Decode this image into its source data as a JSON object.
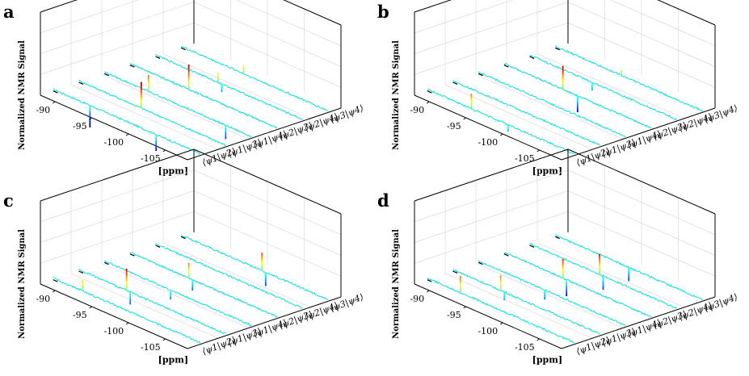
{
  "chart_data": [
    {
      "panel": "a",
      "type": "line",
      "ylabel": "Normalized NMR Signal",
      "xlabel": "[ppm]",
      "x_ticks": [
        "-90",
        "-95",
        "-100",
        "-105"
      ],
      "series_labels": [
        "⟨ψ1|ψ2⟩",
        "⟨ψ1|ψ3⟩",
        "⟨ψ1|ψ4⟩",
        "⟨ψ2|ψ3⟩",
        "⟨ψ2|ψ4⟩",
        "⟨ψ3|ψ4⟩"
      ],
      "xlim": [
        -88,
        -108
      ],
      "colormap": "jet",
      "peaks": [
        {
          "series": 0,
          "ppm": -93.0,
          "value": -0.8
        },
        {
          "series": 0,
          "ppm": -102.0,
          "value": -0.6
        },
        {
          "series": 1,
          "ppm": -96.5,
          "value": 0.95
        },
        {
          "series": 2,
          "ppm": -94.0,
          "value": 0.6
        },
        {
          "series": 2,
          "ppm": -104.5,
          "value": -0.5
        },
        {
          "series": 3,
          "ppm": -96.0,
          "value": 0.9
        },
        {
          "series": 4,
          "ppm": -96.5,
          "value": 0.35
        },
        {
          "series": 4,
          "ppm": -97.0,
          "value": -0.3
        },
        {
          "series": 5,
          "ppm": -96.5,
          "value": 0.3
        }
      ]
    },
    {
      "panel": "b",
      "type": "line",
      "ylabel": "Normalized NMR Signal",
      "xlabel": "[ppm]",
      "x_ticks": [
        "-90",
        "-95",
        "-100",
        "-105"
      ],
      "series_labels": [
        "⟨ψ1|ψ2⟩",
        "⟨ψ1|ψ3⟩",
        "⟨ψ1|ψ4⟩",
        "⟨ψ2|ψ3⟩",
        "⟨ψ2|ψ4⟩",
        "⟨ψ3|ψ4⟩"
      ],
      "xlim": [
        -88,
        -108
      ],
      "colormap": "jet",
      "peaks": [
        {
          "series": 0,
          "ppm": -94.0,
          "value": 0.55
        },
        {
          "series": 0,
          "ppm": -99.0,
          "value": -0.25
        },
        {
          "series": 3,
          "ppm": -96.0,
          "value": 0.85
        },
        {
          "series": 3,
          "ppm": -98.0,
          "value": -0.6
        },
        {
          "series": 4,
          "ppm": -96.5,
          "value": -0.3
        },
        {
          "series": 5,
          "ppm": -97.0,
          "value": 0.2
        }
      ]
    },
    {
      "panel": "c",
      "type": "line",
      "ylabel": "Normalized NMR Signal",
      "xlabel": "[ppm]",
      "x_ticks": [
        "-90",
        "-95",
        "-100",
        "-105"
      ],
      "series_labels": [
        "⟨ψ1|ψ2⟩",
        "⟨ψ1|ψ3⟩",
        "⟨ψ1|ψ4⟩",
        "⟨ψ2|ψ3⟩",
        "⟨ψ2|ψ4⟩",
        "⟨ψ3|ψ4⟩"
      ],
      "xlim": [
        -88,
        -108
      ],
      "colormap": "jet",
      "peaks": [
        {
          "series": 0,
          "ppm": -92.0,
          "value": 0.4
        },
        {
          "series": 1,
          "ppm": -94.5,
          "value": 0.8
        },
        {
          "series": 1,
          "ppm": -95.0,
          "value": -0.45
        },
        {
          "series": 2,
          "ppm": -97.0,
          "value": -0.35
        },
        {
          "series": 3,
          "ppm": -96.0,
          "value": 0.55
        },
        {
          "series": 3,
          "ppm": -96.5,
          "value": -0.4
        },
        {
          "series": 5,
          "ppm": -99.0,
          "value": 0.65
        },
        {
          "series": 5,
          "ppm": -99.5,
          "value": -0.5
        }
      ]
    },
    {
      "panel": "d",
      "type": "line",
      "ylabel": "Normalized NMR Signal",
      "xlabel": "[ppm]",
      "x_ticks": [
        "-90",
        "-95",
        "-100",
        "-105"
      ],
      "series_labels": [
        "⟨ψ1|ψ2⟩",
        "⟨ψ1|ψ3⟩",
        "⟨ψ1|ψ4⟩",
        "⟨ψ2|ψ3⟩",
        "⟨ψ2|ψ4⟩",
        "⟨ψ3|ψ4⟩"
      ],
      "xlim": [
        -88,
        -108
      ],
      "colormap": "jet",
      "peaks": [
        {
          "series": 0,
          "ppm": -92.5,
          "value": 0.6
        },
        {
          "series": 1,
          "ppm": -94.5,
          "value": 0.55
        },
        {
          "series": 1,
          "ppm": -95.0,
          "value": -0.3
        },
        {
          "series": 2,
          "ppm": -97.0,
          "value": -0.35
        },
        {
          "series": 3,
          "ppm": -96.0,
          "value": 0.7
        },
        {
          "series": 3,
          "ppm": -96.5,
          "value": -0.6
        },
        {
          "series": 4,
          "ppm": -97.5,
          "value": 0.75
        },
        {
          "series": 4,
          "ppm": -98.0,
          "value": -0.5
        },
        {
          "series": 5,
          "ppm": -98.0,
          "value": -0.5
        }
      ]
    }
  ]
}
